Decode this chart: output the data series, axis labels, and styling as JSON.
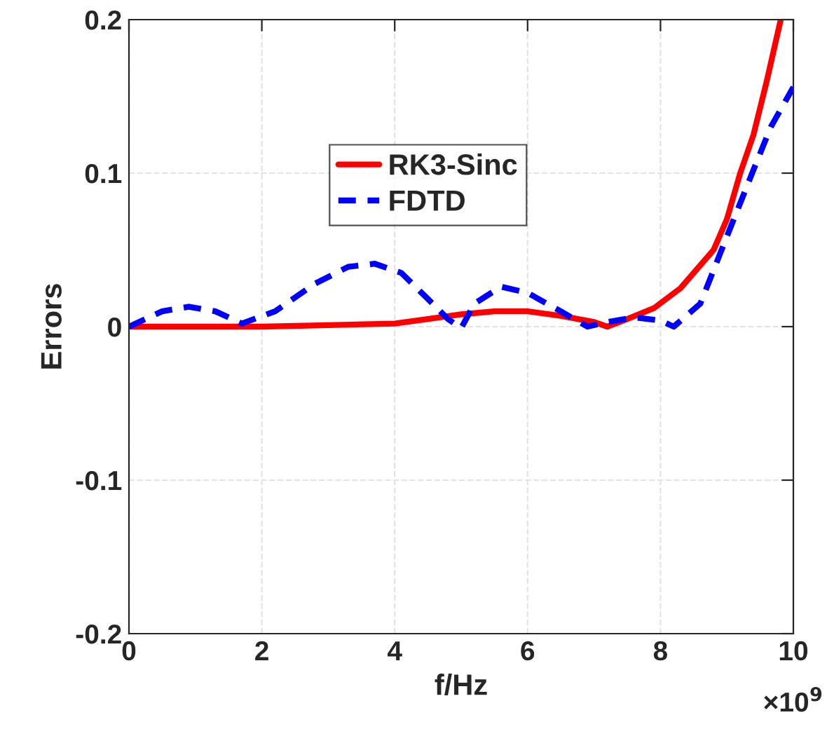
{
  "chart_data": {
    "type": "line",
    "xlabel": "f/Hz",
    "ylabel": "Errors",
    "xlim": [
      0,
      10
    ],
    "xticks": [
      0,
      2,
      4,
      6,
      8,
      10
    ],
    "ylim": [
      -0.2,
      0.2
    ],
    "yticks": [
      -0.2,
      -0.1,
      0,
      0.1,
      0.2
    ],
    "annotations": [
      "×10$^{9}$"
    ],
    "grid": true,
    "legend": "top left",
    "series": [
      {
        "name": "RK3-Sinc",
        "color": "#ff0000",
        "line_style": "solid",
        "x": [
          0,
          1,
          2,
          3,
          4,
          4.5,
          5,
          5.5,
          6,
          6.5,
          7,
          7.2,
          7.5,
          7.9,
          8.3,
          8.8,
          9,
          9.2,
          9.4,
          9.6,
          9.81
        ],
        "values": [
          0,
          0,
          0,
          0.001,
          0.002,
          0.005,
          0.008,
          0.01,
          0.01,
          0.007,
          0.003,
          0,
          0.005,
          0.012,
          0.025,
          0.05,
          0.07,
          0.1,
          0.125,
          0.16,
          0.2
        ]
      },
      {
        "name": "FDTD",
        "color": "#0000ff",
        "line_style": "dashed",
        "x": [
          0,
          0.5,
          0.9,
          1.3,
          1.7,
          2.2,
          2.8,
          3.3,
          3.7,
          4.1,
          4.5,
          4.8,
          5,
          5.2,
          5.6,
          6,
          6.5,
          6.9,
          7.2,
          7.6,
          8,
          8.2,
          8.6,
          8.92,
          9.15,
          9.38,
          9.66,
          10
        ],
        "values": [
          0,
          0.01,
          0.013,
          0.01,
          0.002,
          0.01,
          0.028,
          0.039,
          0.041,
          0.035,
          0.018,
          0.005,
          -0.001,
          0.015,
          0.026,
          0.022,
          0.01,
          0,
          0.003,
          0.006,
          0.004,
          0,
          0.015,
          0.05,
          0.075,
          0.1,
          0.13,
          0.156
        ]
      }
    ]
  }
}
